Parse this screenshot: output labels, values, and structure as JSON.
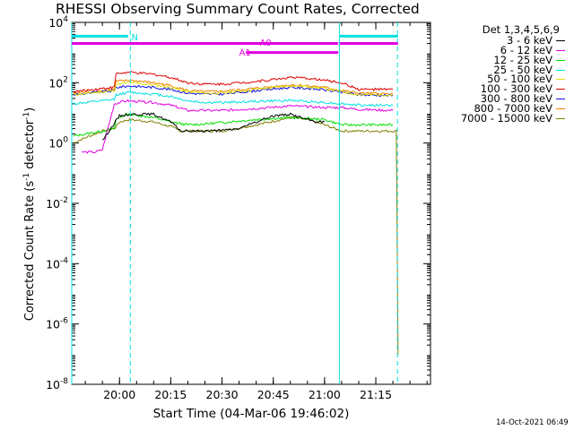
{
  "chart_data": {
    "type": "line",
    "title": "RHESSI Observing Summary Count Rates, Corrected",
    "xlabel": "Start Time (04-Mar-06 19:46:02)",
    "ylabel": "Corrected Count Rate (s-1 detector-1)",
    "ylabel_parts": {
      "main": "Corrected Count Rate (s",
      "exp1": "-1",
      "mid": " detector",
      "exp2": "-1",
      "end": ")"
    },
    "y_scale": "log",
    "ylim": [
      1e-08,
      10000
    ],
    "y_ticks": [
      {
        "value": 10000,
        "base": "10",
        "exp": "4"
      },
      {
        "value": 100,
        "base": "10",
        "exp": "2"
      },
      {
        "value": 1,
        "base": "10",
        "exp": "0"
      },
      {
        "value": 0.01,
        "base": "10",
        "exp": "-2"
      },
      {
        "value": 0.0001,
        "base": "10",
        "exp": "-4"
      },
      {
        "value": 1e-06,
        "base": "10",
        "exp": "-6"
      },
      {
        "value": 1e-08,
        "base": "10",
        "exp": "-8"
      }
    ],
    "xlim": [
      "19:46:02",
      "21:31:00"
    ],
    "x_ticks": [
      "20:00",
      "20:15",
      "20:30",
      "20:45",
      "21:00",
      "21:15"
    ],
    "legend": {
      "title": "Det 1,3,4,5,6,9",
      "placement": "right of plot, top",
      "entries": [
        {
          "label": "3 - 6 keV",
          "color": "#000000"
        },
        {
          "label": "6 - 12 keV",
          "color": "#e000e0"
        },
        {
          "label": "12 - 25 keV",
          "color": "#00e000"
        },
        {
          "label": "25 - 50 keV",
          "color": "#00e0e0"
        },
        {
          "label": "50 - 100 keV",
          "color": "#e0e000"
        },
        {
          "label": "100 - 300 keV",
          "color": "#e00000"
        },
        {
          "label": "300 - 800 keV",
          "color": "#1010e0"
        },
        {
          "label": "800 - 7000 keV",
          "color": "#f08000"
        },
        {
          "label": "7000 - 15000 keV",
          "color": "#808000"
        }
      ]
    },
    "series": [
      {
        "name": "3 - 6 keV",
        "color": "#000000",
        "points": [
          [
            "19:55:00",
            1.2
          ],
          [
            "20:00:00",
            8
          ],
          [
            "20:03:00",
            9
          ],
          [
            "20:10:00",
            9
          ],
          [
            "20:15:00",
            5
          ],
          [
            "20:18:00",
            2.5
          ],
          [
            "20:22:00",
            2.5
          ],
          [
            "20:30:00",
            2.6
          ],
          [
            "20:35:00",
            3
          ],
          [
            "20:40:00",
            5
          ],
          [
            "20:45:00",
            8
          ],
          [
            "20:50:00",
            9
          ],
          [
            "20:55:00",
            6
          ],
          [
            "20:58:00",
            5
          ],
          [
            "21:00:00",
            5
          ]
        ]
      },
      {
        "name": "6 - 12 keV",
        "color": "#e000e0",
        "points": [
          [
            "19:49:00",
            0.5
          ],
          [
            "19:53:00",
            0.5
          ],
          [
            "19:55:00",
            0.6
          ],
          [
            "19:58:30",
            20
          ],
          [
            "20:02:00",
            25
          ],
          [
            "20:10:00",
            22
          ],
          [
            "20:15:00",
            18
          ],
          [
            "20:20:00",
            12
          ],
          [
            "20:30:00",
            12
          ],
          [
            "20:40:00",
            14
          ],
          [
            "20:50:00",
            17
          ],
          [
            "20:55:00",
            16
          ],
          [
            "21:00:00",
            15
          ],
          [
            "21:05:00",
            15
          ],
          [
            "21:10:00",
            13
          ],
          [
            "21:20:00",
            12
          ]
        ]
      },
      {
        "name": "12 - 25 keV",
        "color": "#00e000",
        "points": [
          [
            "19:46:30",
            1.7
          ],
          [
            "19:55:00",
            2.5
          ],
          [
            "19:58:30",
            3
          ],
          [
            "19:59:00",
            6
          ],
          [
            "20:02:00",
            9
          ],
          [
            "20:06:00",
            8
          ],
          [
            "20:10:00",
            7
          ],
          [
            "20:15:00",
            5
          ],
          [
            "20:20:00",
            4
          ],
          [
            "20:25:00",
            4.3
          ],
          [
            "20:30:00",
            4.8
          ],
          [
            "20:40:00",
            6
          ],
          [
            "20:50:00",
            7
          ],
          [
            "20:55:00",
            6.5
          ],
          [
            "21:00:00",
            6
          ],
          [
            "21:05:00",
            4
          ],
          [
            "21:10:00",
            4
          ],
          [
            "21:20:00",
            4
          ]
        ]
      },
      {
        "name": "25 - 50 keV",
        "color": "#00e0e0",
        "points": [
          [
            "19:46:30",
            20
          ],
          [
            "19:55:00",
            25
          ],
          [
            "19:58:30",
            28
          ],
          [
            "19:59:00",
            40
          ],
          [
            "20:03:00",
            48
          ],
          [
            "20:10:00",
            42
          ],
          [
            "20:15:00",
            35
          ],
          [
            "20:20:00",
            25
          ],
          [
            "20:25:00",
            22
          ],
          [
            "20:30:00",
            22
          ],
          [
            "20:40:00",
            24
          ],
          [
            "20:50:00",
            26
          ],
          [
            "20:55:00",
            24
          ],
          [
            "21:00:00",
            22
          ],
          [
            "21:05:00",
            20
          ],
          [
            "21:10:00",
            18
          ],
          [
            "21:20:00",
            18
          ]
        ]
      },
      {
        "name": "50 - 100 keV",
        "color": "#e0e000",
        "points": [
          [
            "19:46:30",
            40
          ],
          [
            "19:55:00",
            50
          ],
          [
            "19:58:30",
            55
          ],
          [
            "19:59:00",
            90
          ],
          [
            "20:03:00",
            100
          ],
          [
            "20:10:00",
            85
          ],
          [
            "20:15:00",
            70
          ],
          [
            "20:20:00",
            50
          ],
          [
            "20:25:00",
            45
          ],
          [
            "20:30:00",
            45
          ],
          [
            "20:40:00",
            60
          ],
          [
            "20:50:00",
            80
          ],
          [
            "20:55:00",
            75
          ],
          [
            "21:00:00",
            65
          ],
          [
            "21:05:00",
            50
          ],
          [
            "21:10:00",
            40
          ],
          [
            "21:20:00",
            40
          ]
        ]
      },
      {
        "name": "100 - 300 keV",
        "color": "#e00000",
        "points": [
          [
            "19:46:30",
            50
          ],
          [
            "19:55:00",
            65
          ],
          [
            "19:58:30",
            70
          ],
          [
            "19:59:00",
            200
          ],
          [
            "20:03:00",
            220
          ],
          [
            "20:10:00",
            190
          ],
          [
            "20:15:00",
            150
          ],
          [
            "20:20:00",
            100
          ],
          [
            "20:25:00",
            90
          ],
          [
            "20:30:00",
            90
          ],
          [
            "20:40:00",
            110
          ],
          [
            "20:50:00",
            150
          ],
          [
            "20:55:00",
            140
          ],
          [
            "21:00:00",
            120
          ],
          [
            "21:05:00",
            100
          ],
          [
            "21:10:00",
            60
          ],
          [
            "21:20:00",
            60
          ]
        ]
      },
      {
        "name": "300 - 800 keV",
        "color": "#1010e0",
        "points": [
          [
            "19:46:30",
            40
          ],
          [
            "19:55:00",
            50
          ],
          [
            "19:58:30",
            55
          ],
          [
            "19:59:00",
            70
          ],
          [
            "20:03:00",
            78
          ],
          [
            "20:10:00",
            70
          ],
          [
            "20:15:00",
            60
          ],
          [
            "20:20:00",
            45
          ],
          [
            "20:25:00",
            42
          ],
          [
            "20:30:00",
            42
          ],
          [
            "20:40:00",
            55
          ],
          [
            "20:50:00",
            70
          ],
          [
            "20:55:00",
            65
          ],
          [
            "21:00:00",
            58
          ],
          [
            "21:05:00",
            48
          ],
          [
            "21:10:00",
            40
          ],
          [
            "21:20:00",
            38
          ]
        ]
      },
      {
        "name": "800 - 7000 keV",
        "color": "#f08000",
        "points": [
          [
            "19:46:30",
            45
          ],
          [
            "19:55:00",
            55
          ],
          [
            "19:58:30",
            60
          ],
          [
            "19:59:00",
            110
          ],
          [
            "20:03:00",
            120
          ],
          [
            "20:10:00",
            100
          ],
          [
            "20:15:00",
            80
          ],
          [
            "20:20:00",
            55
          ],
          [
            "20:25:00",
            50
          ],
          [
            "20:30:00",
            52
          ],
          [
            "20:40:00",
            65
          ],
          [
            "20:50:00",
            85
          ],
          [
            "20:55:00",
            80
          ],
          [
            "21:00:00",
            70
          ],
          [
            "21:05:00",
            55
          ],
          [
            "21:10:00",
            45
          ],
          [
            "21:20:00",
            42
          ]
        ]
      },
      {
        "name": "7000 - 15000 keV",
        "color": "#808000",
        "points": [
          [
            "19:46:30",
            1
          ],
          [
            "19:50:00",
            1.5
          ],
          [
            "19:55:00",
            2.5
          ],
          [
            "19:58:30",
            3
          ],
          [
            "20:00:00",
            5
          ],
          [
            "20:03:00",
            6
          ],
          [
            "20:10:00",
            5
          ],
          [
            "20:15:00",
            3.5
          ],
          [
            "20:18:00",
            2.5
          ],
          [
            "20:30:00",
            2.5
          ],
          [
            "20:40:00",
            4
          ],
          [
            "20:50:00",
            7
          ],
          [
            "20:55:00",
            6
          ],
          [
            "21:00:00",
            4
          ],
          [
            "21:05:00",
            2.5
          ],
          [
            "21:20:00",
            2.5
          ],
          [
            "21:21:00",
            2.5
          ],
          [
            "21:21:30",
            1e-07
          ]
        ]
      }
    ],
    "annotations": {
      "bars": [
        {
          "label": "N",
          "color": "#00e0e0",
          "start": "19:46:02",
          "end": "20:02:30",
          "value": 3500,
          "label_at": "20:03:30",
          "label_value": 3300
        },
        {
          "label": "",
          "color": "#00e0e0",
          "start": "21:04:30",
          "end": "21:21:30",
          "value": 3500
        },
        {
          "label": "A0",
          "color": "#e000e0",
          "start": "19:46:02",
          "end": "21:04:00",
          "value": 2000,
          "label_at": "20:41:00",
          "label_value": 2200
        },
        {
          "label": "",
          "color": "#e000e0",
          "start": "21:04:30",
          "end": "21:21:30",
          "value": 2000
        },
        {
          "label": "A1",
          "color": "#e000e0",
          "start": "20:37:00",
          "end": "21:04:00",
          "value": 1000,
          "label_at": "20:35:00",
          "label_value": 1050
        }
      ],
      "vlines": [
        {
          "time": "20:03:10",
          "color": "#00e0e0",
          "style": "dashed"
        },
        {
          "time": "21:21:20",
          "color": "#00e0e0",
          "style": "dashed"
        },
        {
          "time": "19:46:02",
          "color": "#00e0e0",
          "style": "solid"
        },
        {
          "time": "21:04:20",
          "color": "#00e0e0",
          "style": "solid"
        }
      ]
    }
  },
  "timestamp": "14-Oct-2021 06:49"
}
